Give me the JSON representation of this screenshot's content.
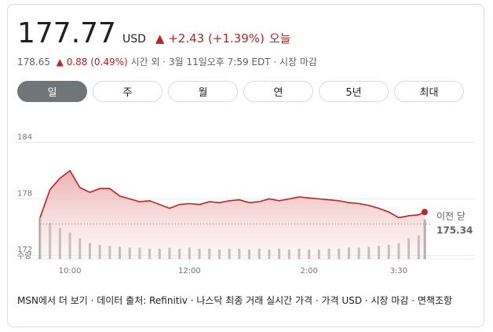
{
  "header": {
    "price": "177.77",
    "currency": "USD",
    "change": "+2.43 (+1.39%)",
    "period": "오늘",
    "after_hours_price": "178.65",
    "after_hours_change": "0.88 (0.49%)",
    "after_hours_info": "시간 외 · 3월 11일오후 7:59 EDT · 시장 마감"
  },
  "tabs": [
    "일",
    "주",
    "월",
    "연",
    "5년",
    "최대"
  ],
  "chart_data": {
    "type": "line",
    "color": "#c5221f",
    "x": [
      570,
      580,
      590,
      600,
      610,
      620,
      630,
      640,
      650,
      660,
      670,
      680,
      690,
      700,
      710,
      720,
      730,
      740,
      750,
      760,
      770,
      780,
      790,
      800,
      810,
      820,
      830,
      840,
      850,
      860,
      870,
      880,
      890,
      900,
      910,
      920,
      930,
      940,
      950,
      956
    ],
    "series": [
      {
        "values": [
          176.0,
          179.0,
          180.2,
          181.0,
          179.2,
          178.7,
          179.1,
          179.1,
          178.3,
          178.0,
          177.7,
          177.8,
          177.4,
          177.0,
          177.4,
          177.5,
          177.4,
          177.7,
          177.6,
          177.8,
          177.9,
          177.6,
          177.7,
          178.0,
          177.8,
          178.0,
          178.2,
          178.1,
          178.0,
          177.9,
          177.8,
          177.6,
          177.5,
          177.3,
          177.0,
          176.6,
          176.0,
          176.2,
          176.3,
          176.6
        ]
      }
    ],
    "volume": {
      "label": "수량",
      "values": [
        44,
        38,
        33,
        28,
        22,
        17,
        15,
        14,
        13,
        12,
        12,
        11,
        11,
        12,
        11,
        12,
        11,
        11,
        10,
        11,
        11,
        10,
        11,
        10,
        11,
        10,
        11,
        10,
        10,
        11,
        11,
        12,
        12,
        13,
        14,
        15,
        17,
        22,
        25,
        42
      ],
      "vlim": [
        0,
        50
      ]
    },
    "previous_close": {
      "label": "이전 닫",
      "value": 175.34
    },
    "xlim": [
      570,
      960
    ],
    "xticks": [
      {
        "value": 600,
        "label": "10:00"
      },
      {
        "value": 720,
        "label": "12:00"
      },
      {
        "value": 840,
        "label": "2:00"
      },
      {
        "value": 930,
        "label": "3:30"
      }
    ],
    "ylim": [
      171.6,
      185.8
    ],
    "yticks": [
      184,
      178,
      172
    ],
    "grid": true
  },
  "footer": "MSN에서 더 보기 · 데이터 출처: Refinitiv · 나스닥 최종 거래 실시간 가격 · 가격 USD · 시장 마감 · 면책조항"
}
